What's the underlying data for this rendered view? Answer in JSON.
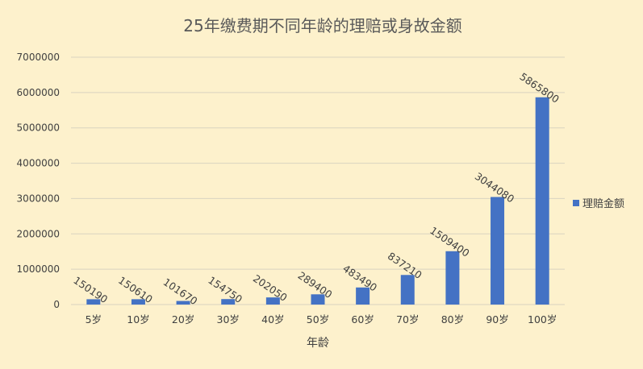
{
  "chart_data": {
    "type": "bar",
    "title": "25年缴费期不同年龄的理赔或身故金额",
    "xlabel": "年龄",
    "ylabel": "",
    "ylim": [
      0,
      7000000
    ],
    "yticks": [
      0,
      1000000,
      2000000,
      3000000,
      4000000,
      5000000,
      6000000,
      7000000
    ],
    "categories": [
      "5岁",
      "10岁",
      "20岁",
      "30岁",
      "40岁",
      "50岁",
      "60岁",
      "70岁",
      "80岁",
      "90岁",
      "100岁"
    ],
    "series": [
      {
        "name": "理赔金额",
        "values": [
          150190,
          150610,
          101670,
          154750,
          202050,
          289400,
          483490,
          837210,
          1509400,
          3044080,
          5865800
        ]
      }
    ],
    "grid": true,
    "legend_position": "right"
  },
  "colors": {
    "background": "#fdf1cc",
    "bar": "#4472c4",
    "grid": "#d9d4c0"
  }
}
